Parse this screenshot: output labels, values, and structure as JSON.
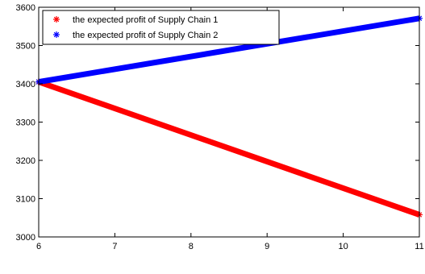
{
  "chart_data": {
    "type": "line",
    "title": "",
    "xlabel": "",
    "ylabel": "",
    "xlim": [
      6,
      11
    ],
    "ylim": [
      3000,
      3600
    ],
    "xticks": [
      6,
      7,
      8,
      9,
      10,
      11
    ],
    "yticks": [
      3000,
      3100,
      3200,
      3300,
      3400,
      3500,
      3600
    ],
    "grid": false,
    "legend": "top-left",
    "series": [
      {
        "name": "the expected profit of Supply Chain 1",
        "color": "#ff0000",
        "marker": "asterisk",
        "x": [
          6,
          11
        ],
        "y": [
          3405,
          3058
        ]
      },
      {
        "name": "the expected profit of Supply Chain 2",
        "color": "#0000ff",
        "marker": "asterisk",
        "x": [
          6,
          11
        ],
        "y": [
          3405,
          3571
        ]
      }
    ]
  }
}
